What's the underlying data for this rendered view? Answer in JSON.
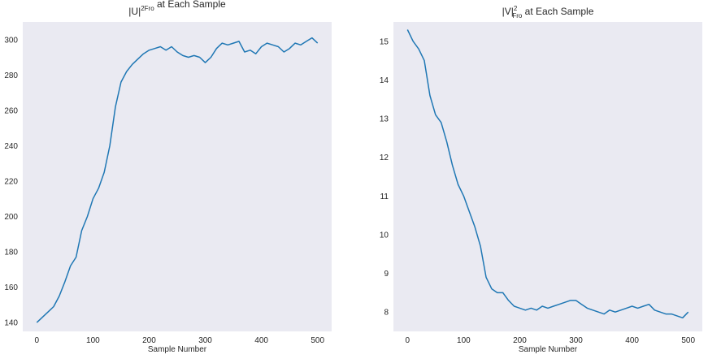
{
  "chart_data": [
    {
      "type": "line",
      "title": {
        "prefix": "|U|",
        "superscript": "2",
        "subscript": "Fro",
        "suffix": " at Each Sample"
      },
      "xlabel": "Sample Number",
      "ylabel": "",
      "xlim": [
        -25,
        525
      ],
      "ylim": [
        135,
        310
      ],
      "xticks": [
        0,
        100,
        200,
        300,
        400,
        500
      ],
      "yticks": [
        140,
        160,
        180,
        200,
        220,
        240,
        260,
        280,
        300
      ],
      "grid": false,
      "series_color": "#1f77b4",
      "x": [
        0,
        10,
        20,
        30,
        40,
        50,
        60,
        70,
        80,
        90,
        100,
        110,
        120,
        130,
        140,
        150,
        160,
        170,
        180,
        190,
        200,
        210,
        220,
        230,
        240,
        250,
        260,
        270,
        280,
        290,
        300,
        310,
        320,
        330,
        340,
        350,
        360,
        370,
        380,
        390,
        400,
        410,
        420,
        430,
        440,
        450,
        460,
        470,
        480,
        490,
        500
      ],
      "y": [
        140,
        143,
        146,
        149,
        155,
        163,
        172,
        177,
        192,
        200,
        210,
        216,
        225,
        240,
        262,
        276,
        282,
        286,
        289,
        292,
        294,
        295,
        296,
        294,
        296,
        293,
        291,
        290,
        291,
        290,
        287,
        290,
        295,
        298,
        297,
        298,
        299,
        293,
        294,
        292,
        296,
        298,
        297,
        296,
        293,
        295,
        298,
        297,
        299,
        301,
        298
      ]
    },
    {
      "type": "line",
      "title": {
        "prefix": "|V|",
        "superscript": "2",
        "subscript": "Fro",
        "suffix": " at Each Sample"
      },
      "xlabel": "Sample Number",
      "ylabel": "",
      "xlim": [
        -25,
        525
      ],
      "ylim": [
        7.5,
        15.5
      ],
      "xticks": [
        0,
        100,
        200,
        300,
        400,
        500
      ],
      "yticks": [
        8,
        9,
        10,
        11,
        12,
        13,
        14,
        15
      ],
      "grid": false,
      "series_color": "#1f77b4",
      "x": [
        0,
        10,
        20,
        30,
        40,
        50,
        60,
        70,
        80,
        90,
        100,
        110,
        120,
        130,
        140,
        150,
        160,
        170,
        180,
        190,
        200,
        210,
        220,
        230,
        240,
        250,
        260,
        270,
        280,
        290,
        300,
        310,
        320,
        330,
        340,
        350,
        360,
        370,
        380,
        390,
        400,
        410,
        420,
        430,
        440,
        450,
        460,
        470,
        480,
        490,
        500
      ],
      "y": [
        15.3,
        15.0,
        14.8,
        14.5,
        13.6,
        13.1,
        12.9,
        12.4,
        11.8,
        11.3,
        11.0,
        10.6,
        10.2,
        9.7,
        8.9,
        8.6,
        8.5,
        8.5,
        8.3,
        8.15,
        8.1,
        8.05,
        8.1,
        8.05,
        8.15,
        8.1,
        8.15,
        8.2,
        8.25,
        8.3,
        8.3,
        8.2,
        8.1,
        8.05,
        8.0,
        7.95,
        8.05,
        8.0,
        8.05,
        8.1,
        8.15,
        8.1,
        8.15,
        8.2,
        8.05,
        8.0,
        7.95,
        7.95,
        7.9,
        7.85,
        8.0
      ]
    }
  ]
}
